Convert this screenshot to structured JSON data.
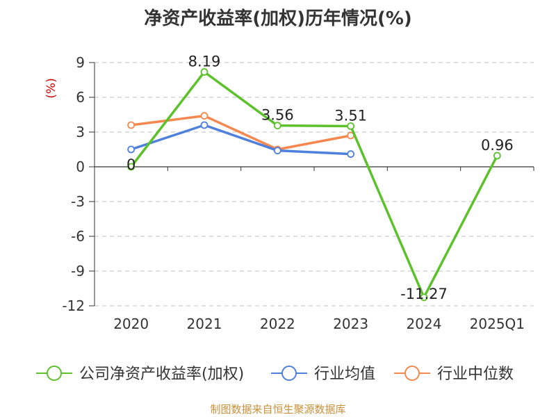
{
  "chart_data": {
    "type": "line",
    "title": "净资产收益率(加权)历年情况(%)",
    "ylabel": "(%)",
    "xlabel": "",
    "categories": [
      "2020",
      "2021",
      "2022",
      "2023",
      "2024",
      "2025Q1"
    ],
    "ylim": [
      -12,
      9
    ],
    "yticks": [
      9,
      6,
      3,
      0,
      -3,
      -6,
      -9,
      -12
    ],
    "grid": true,
    "legend_position": "bottom",
    "series": [
      {
        "name": "公司净资产收益率(加权)",
        "color": "#5cc12a",
        "values": [
          0,
          8.19,
          3.56,
          3.51,
          -11.27,
          0.96
        ],
        "labels": [
          "0",
          "8.19",
          "3.56",
          "3.51",
          "-11.27",
          "0.96"
        ],
        "show_labels": true
      },
      {
        "name": "行业均值",
        "color": "#4f80dc",
        "values": [
          1.5,
          3.6,
          1.4,
          1.1,
          null,
          null
        ],
        "show_labels": false
      },
      {
        "name": "行业中位数",
        "color": "#f5884f",
        "values": [
          3.6,
          4.4,
          1.5,
          2.7,
          null,
          null
        ],
        "show_labels": false
      }
    ]
  },
  "source_note": "制图数据来自恒生聚源数据库"
}
